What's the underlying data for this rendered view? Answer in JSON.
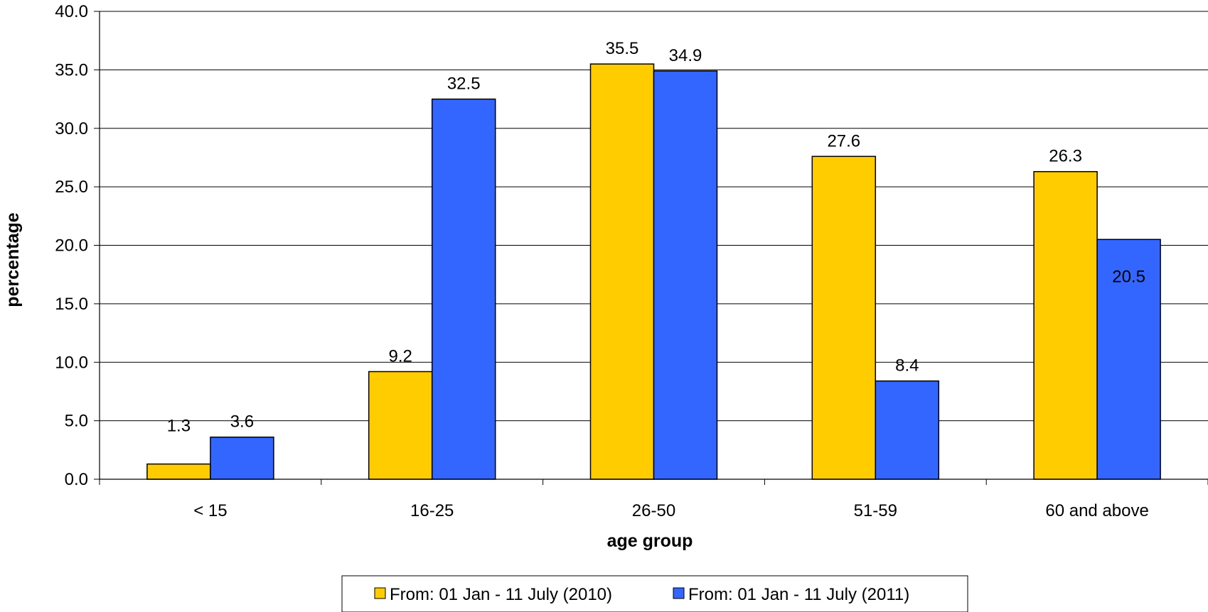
{
  "chart_data": {
    "type": "bar",
    "categories": [
      "< 15",
      "16-25",
      "26-50",
      "51-59",
      "60 and above"
    ],
    "series": [
      {
        "name": "From: 01 Jan - 11 July (2010)",
        "color": "#FFCC00",
        "values": [
          1.3,
          9.2,
          35.5,
          27.6,
          26.3
        ]
      },
      {
        "name": "From: 01 Jan - 11 July (2011)",
        "color": "#3366FF",
        "values": [
          3.6,
          32.5,
          34.9,
          8.4,
          20.5
        ]
      }
    ],
    "title": "",
    "xlabel": "age group",
    "ylabel": "percentage",
    "ylim": [
      0,
      40
    ],
    "yticks": [
      "0.0",
      "5.0",
      "10.0",
      "15.0",
      "20.0",
      "25.0",
      "30.0",
      "35.0",
      "40.0"
    ],
    "grid": true,
    "legend_position": "bottom"
  }
}
